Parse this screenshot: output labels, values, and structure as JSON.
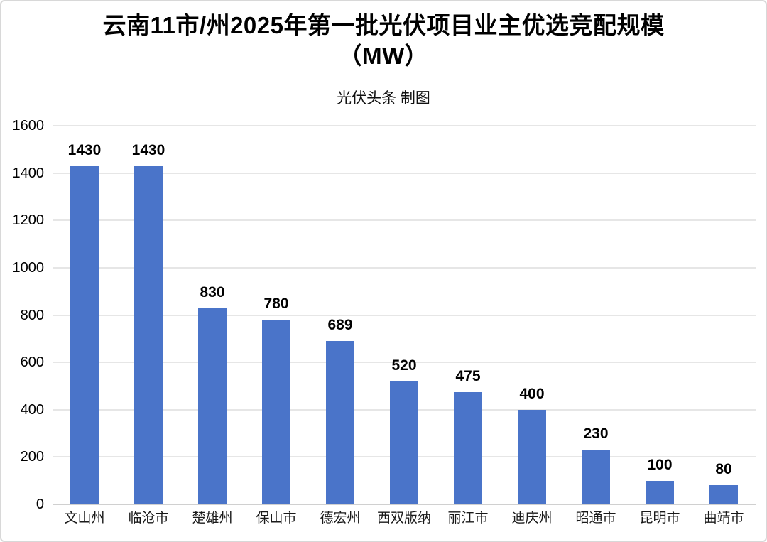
{
  "header": {
    "title_line1": "云南11市/州2025年第一批光伏项目业主优选竞配规模",
    "title_line2": "（MW）",
    "subtitle": "光伏头条 制图"
  },
  "chart_data": {
    "type": "bar",
    "title": "云南11市/州2025年第一批光伏项目业主优选竞配规模（MW）",
    "subtitle": "光伏头条 制图",
    "categories": [
      "文山州",
      "临沧市",
      "楚雄州",
      "保山市",
      "德宏州",
      "西双版纳",
      "丽江市",
      "迪庆州",
      "昭通市",
      "昆明市",
      "曲靖市"
    ],
    "values": [
      1430,
      1430,
      830,
      780,
      689,
      520,
      475,
      400,
      230,
      100,
      80
    ],
    "value_labels": [
      1430,
      1430,
      830,
      780,
      689,
      520,
      475,
      400,
      230,
      100,
      80
    ],
    "xlabel": "",
    "ylabel": "",
    "ylim": [
      0,
      1600
    ],
    "ytick_step": 200,
    "yticks": [
      0,
      200,
      400,
      600,
      800,
      1000,
      1200,
      1400,
      1600
    ],
    "grid": true,
    "legend_position": "none",
    "bar_color": "#4a74c9",
    "gridline_color": "#e6e6e6",
    "baseline_color": "#d0d0d0",
    "label_color": "#000000"
  }
}
